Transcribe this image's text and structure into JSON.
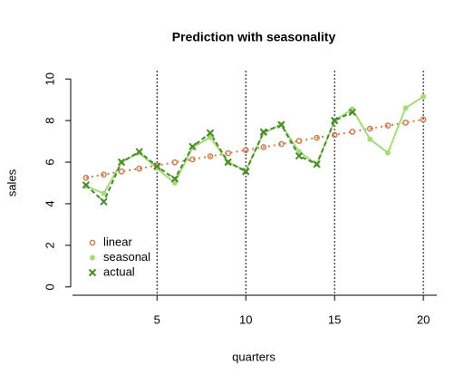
{
  "chart_data": {
    "type": "line",
    "title": "Prediction with seasonality",
    "xlabel": "quarters",
    "ylabel": "sales",
    "x": [
      1,
      2,
      3,
      4,
      5,
      6,
      7,
      8,
      9,
      10,
      11,
      12,
      13,
      14,
      15,
      16,
      17,
      18,
      19,
      20
    ],
    "series": [
      {
        "name": "linear",
        "color": "#cd7f4f",
        "marker": "circle-open",
        "line_style": "dotted",
        "values": [
          5.25,
          5.4,
          5.55,
          5.69,
          5.84,
          5.99,
          6.13,
          6.28,
          6.43,
          6.58,
          6.72,
          6.87,
          7.02,
          7.17,
          7.31,
          7.46,
          7.61,
          7.76,
          7.9,
          8.05
        ]
      },
      {
        "name": "seasonal",
        "color": "#a6db7c",
        "marker": "circle",
        "line_style": "solid",
        "values": [
          4.85,
          4.5,
          6.0,
          6.45,
          5.7,
          5.0,
          6.7,
          7.2,
          6.0,
          5.6,
          7.4,
          7.8,
          6.5,
          5.9,
          8.0,
          8.55,
          7.1,
          6.45,
          8.6,
          9.15
        ]
      },
      {
        "name": "actual",
        "color": "#4a8a2e",
        "marker": "x",
        "line_style": "dashed",
        "values": [
          4.9,
          4.1,
          6.0,
          6.5,
          5.8,
          5.2,
          6.75,
          7.4,
          6.0,
          5.55,
          7.45,
          7.8,
          6.3,
          5.9,
          8.0,
          8.4,
          null,
          null,
          null,
          null
        ]
      }
    ],
    "xlim": [
      0.24,
      20.76
    ],
    "ylim": [
      -0.4,
      10.4
    ],
    "xticks": [
      5,
      10,
      15,
      20
    ],
    "yticks": [
      0,
      2,
      4,
      6,
      8,
      10
    ],
    "vlines": [
      5,
      10,
      15,
      20
    ],
    "legend": "bottomleft"
  }
}
